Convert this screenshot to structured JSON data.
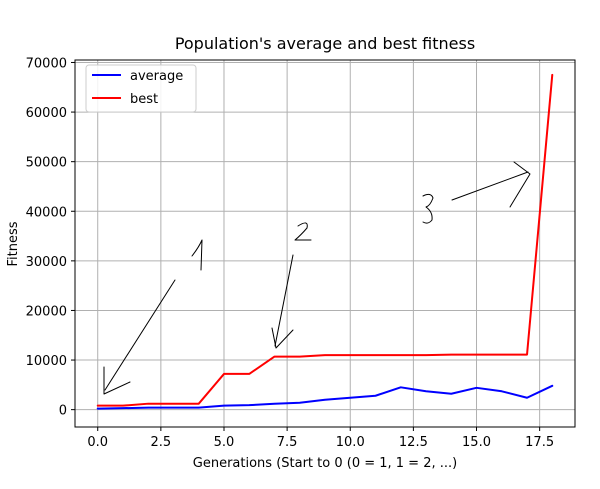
{
  "chart_data": {
    "type": "line",
    "title": "Population's average and best fitness",
    "xlabel": "Generations (Start to 0 (0 = 1, 1 = 2, ...)",
    "ylabel": "Fitness",
    "xlim": [
      -0.9,
      18.9
    ],
    "ylim": [
      -3500,
      70500
    ],
    "x_ticks": [
      0.0,
      2.5,
      5.0,
      7.5,
      10.0,
      12.5,
      15.0,
      17.5
    ],
    "x_tick_labels": [
      "0.0",
      "2.5",
      "5.0",
      "7.5",
      "10.0",
      "12.5",
      "15.0",
      "17.5"
    ],
    "y_ticks": [
      0,
      10000,
      20000,
      30000,
      40000,
      50000,
      60000,
      70000
    ],
    "y_tick_labels": [
      "0",
      "10000",
      "20000",
      "30000",
      "40000",
      "50000",
      "60000",
      "70000"
    ],
    "grid": true,
    "legend_position": "top-left",
    "x": [
      0,
      1,
      2,
      3,
      4,
      5,
      6,
      7,
      8,
      9,
      10,
      11,
      12,
      13,
      14,
      15,
      16,
      17,
      18
    ],
    "series": [
      {
        "name": "average",
        "color": "#0000ff",
        "values": [
          200,
          300,
          400,
          400,
          400,
          800,
          900,
          1200,
          1400,
          2000,
          2400,
          2800,
          4500,
          3700,
          3200,
          4400,
          3700,
          2400,
          4800
        ]
      },
      {
        "name": "best",
        "color": "#ff0000",
        "values": [
          800,
          800,
          1200,
          1200,
          1200,
          7200,
          7200,
          10700,
          10700,
          11000,
          11000,
          11000,
          11000,
          11000,
          11100,
          11100,
          11100,
          11100,
          67500
        ]
      }
    ],
    "annotations": [
      {
        "label": "handwritten-1-arrow",
        "points_to_x": 0.2,
        "points_to_y": 3000
      },
      {
        "label": "handwritten-2-arrow",
        "points_to_x": 7.0,
        "points_to_y": 12600
      },
      {
        "label": "handwritten-3-arrow",
        "points_to_x": 17.2,
        "points_to_y": 47500
      }
    ]
  }
}
